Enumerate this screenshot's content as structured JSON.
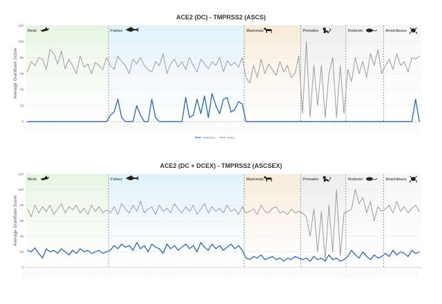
{
  "groups": [
    {
      "name": "Birds",
      "icon": "bird-icon",
      "color": "#e6f5e1"
    },
    {
      "name": "Fishes",
      "icon": "fish-icon",
      "color": "#e0f2fa"
    },
    {
      "name": "Mammals",
      "icon": "mammal-icon",
      "color": "#f7ebd9"
    },
    {
      "name": "Primates",
      "icon": "primate-icon",
      "color": "#ececec"
    },
    {
      "name": "Rodents",
      "icon": "rodent-icon",
      "color": "#f2f2f2"
    },
    {
      "name": "Amphibians",
      "icon": "amphibian-icon",
      "color": "#f7f7f7"
    }
  ],
  "legend": {
    "tmprss2_label": "TMPRSS2",
    "ace2_label": "ACE2"
  },
  "chart_data": [
    {
      "type": "line",
      "title": "ACE2 (DC) - TMPRSS2 (ASCS)",
      "ylabel": "Average Grantham Score",
      "ylim": [
        0,
        120
      ],
      "yticks": [
        0,
        20,
        40,
        60,
        80,
        100,
        120
      ],
      "group_counts": [
        22,
        36,
        15,
        12,
        10,
        10
      ],
      "series": [
        {
          "name": "ACE2",
          "color": "#9b9b9b",
          "values": [
            62,
            75,
            70,
            80,
            78,
            65,
            90,
            85,
            72,
            88,
            66,
            78,
            70,
            60,
            82,
            68,
            72,
            60,
            74,
            70,
            65,
            80,
            70,
            65,
            82,
            75,
            70,
            60,
            78,
            72,
            80,
            70,
            65,
            62,
            75,
            70,
            85,
            60,
            72,
            78,
            68,
            75,
            65,
            80,
            70,
            62,
            78,
            72,
            66,
            75,
            70,
            80,
            62,
            76,
            70,
            74,
            68,
            80,
            55,
            48,
            70,
            55,
            78,
            60,
            72,
            65,
            58,
            75,
            62,
            70,
            55,
            60,
            82,
            10,
            100,
            5,
            70,
            20,
            70,
            5,
            60,
            80,
            5,
            70,
            10,
            65,
            50,
            80,
            60,
            75,
            55,
            85,
            70,
            90,
            60,
            70,
            78,
            65,
            85,
            70,
            75,
            62,
            80,
            78,
            82
          ]
        },
        {
          "name": "TMPRSS2",
          "color": "#3d6ba8",
          "values": [
            0,
            0,
            0,
            0,
            0,
            0,
            0,
            0,
            0,
            0,
            0,
            0,
            0,
            0,
            0,
            0,
            0,
            0,
            0,
            0,
            0,
            0,
            8,
            12,
            28,
            5,
            0,
            0,
            0,
            20,
            8,
            0,
            0,
            28,
            5,
            0,
            0,
            0,
            0,
            0,
            0,
            0,
            30,
            5,
            8,
            28,
            10,
            32,
            5,
            35,
            20,
            10,
            28,
            30,
            12,
            15,
            25,
            22,
            0,
            0,
            0,
            0,
            0,
            0,
            0,
            0,
            0,
            0,
            0,
            0,
            0,
            0,
            0,
            0,
            0,
            0,
            0,
            0,
            0,
            0,
            0,
            0,
            0,
            0,
            0,
            0,
            0,
            0,
            0,
            0,
            0,
            0,
            0,
            0,
            0,
            0,
            0,
            0,
            0,
            0,
            0,
            0,
            0,
            28,
            0
          ]
        }
      ]
    },
    {
      "type": "line",
      "title": "ACE2 (DC + DCEX) - TMPRSS2 (ASCSEX)",
      "ylabel": "Average Grantham Score",
      "ylim": [
        0,
        120
      ],
      "yticks": [
        0,
        20,
        40,
        60,
        80,
        100,
        120
      ],
      "group_counts": [
        22,
        36,
        15,
        12,
        10,
        10
      ],
      "series": [
        {
          "name": "ACE2",
          "color": "#9b9b9b",
          "values": [
            75,
            65,
            80,
            70,
            78,
            72,
            80,
            68,
            75,
            82,
            70,
            78,
            74,
            80,
            70,
            76,
            68,
            80,
            72,
            78,
            70,
            74,
            70,
            78,
            68,
            82,
            75,
            70,
            80,
            72,
            85,
            70,
            75,
            78,
            68,
            80,
            72,
            76,
            70,
            82,
            75,
            70,
            78,
            72,
            80,
            68,
            75,
            82,
            70,
            78,
            72,
            76,
            70,
            80,
            72,
            75,
            68,
            78,
            70,
            72,
            75,
            68,
            80,
            72,
            70,
            76,
            78,
            70,
            72,
            68,
            75,
            70,
            72,
            70,
            65,
            40,
            75,
            20,
            72,
            10,
            80,
            20,
            100,
            15,
            70,
            72,
            75,
            100,
            82,
            90,
            70,
            85,
            60,
            78,
            72,
            75,
            80,
            70,
            85,
            72,
            78,
            70,
            76,
            80,
            72
          ]
        },
        {
          "name": "TMPRSS2",
          "color": "#3d6ba8",
          "values": [
            22,
            20,
            25,
            18,
            12,
            24,
            20,
            22,
            18,
            24,
            20,
            16,
            22,
            18,
            24,
            20,
            22,
            18,
            20,
            22,
            18,
            20,
            22,
            28,
            24,
            30,
            26,
            28,
            22,
            32,
            24,
            28,
            20,
            30,
            26,
            24,
            18,
            30,
            24,
            28,
            22,
            26,
            30,
            24,
            28,
            20,
            32,
            26,
            22,
            30,
            24,
            28,
            22,
            26,
            30,
            24,
            28,
            22,
            12,
            10,
            14,
            12,
            16,
            10,
            12,
            14,
            10,
            12,
            8,
            12,
            10,
            14,
            12,
            10,
            12,
            8,
            14,
            10,
            12,
            8,
            16,
            10,
            12,
            8,
            10,
            14,
            22,
            16,
            12,
            20,
            14,
            10,
            16,
            12,
            14,
            18,
            14,
            22,
            16,
            20,
            18,
            14,
            22,
            18,
            20
          ]
        }
      ]
    }
  ]
}
